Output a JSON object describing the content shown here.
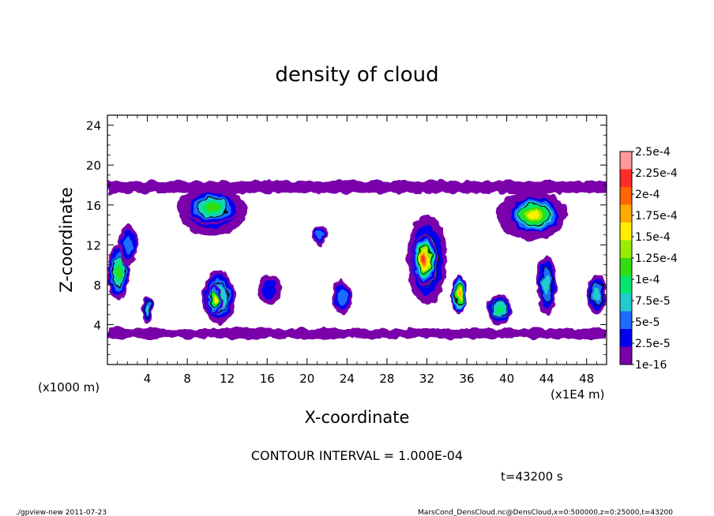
{
  "chart_data": {
    "type": "heatmap",
    "title": "density of cloud",
    "xlabel": "X-coordinate",
    "ylabel": "Z-coordinate",
    "x_unit_label": "(x1E4 m)",
    "y_unit_label": "(x1000 m)",
    "xlim": [
      0,
      50
    ],
    "ylim": [
      0,
      25
    ],
    "x_ticks": [
      4,
      8,
      12,
      16,
      20,
      24,
      28,
      32,
      36,
      40,
      44,
      48
    ],
    "y_ticks": [
      4,
      8,
      12,
      16,
      20,
      24
    ],
    "contour_interval_text": "CONTOUR INTERVAL = 1.000E-04",
    "time_text": "t=43200 s",
    "colorbar": {
      "levels": [
        "2.5e-4",
        "2.25e-4",
        "2e-4",
        "1.75e-4",
        "1.5e-4",
        "1.25e-4",
        "1e-4",
        "7.5e-5",
        "5e-5",
        "2.5e-5",
        "1e-16"
      ],
      "colors": [
        "#ff9a9a",
        "#ff2a2a",
        "#ff6600",
        "#ffaa00",
        "#ffee00",
        "#99ee00",
        "#33dd11",
        "#00e870",
        "#22cccc",
        "#1e6cff",
        "#0000ee",
        "#7a00aa"
      ]
    },
    "cloud_regions": [
      {
        "x": [
          0,
          50
        ],
        "z": [
          2.6,
          3.6
        ],
        "level": 0
      },
      {
        "x": [
          0,
          50
        ],
        "z": [
          17.2,
          18.4
        ],
        "level": 0
      },
      {
        "x": [
          0,
          2.2
        ],
        "z": [
          6.5,
          12.0
        ],
        "level": 5
      },
      {
        "x": [
          1.2,
          3.0
        ],
        "z": [
          10.0,
          14.0
        ],
        "level": 2
      },
      {
        "x": [
          3.4,
          4.6
        ],
        "z": [
          4.2,
          6.8
        ],
        "level": 3
      },
      {
        "x": [
          7.0,
          14.0
        ],
        "z": [
          13.0,
          17.8
        ],
        "level": 2
      },
      {
        "x": [
          7.8,
          13.2
        ],
        "z": [
          14.0,
          17.5
        ],
        "level": 5
      },
      {
        "x": [
          9.5,
          12.8
        ],
        "z": [
          4.0,
          9.5
        ],
        "level": 4
      },
      {
        "x": [
          10.0,
          11.5
        ],
        "z": [
          5.0,
          8.0
        ],
        "level": 7
      },
      {
        "x": [
          15.0,
          17.5
        ],
        "z": [
          6.0,
          9.0
        ],
        "level": 1
      },
      {
        "x": [
          20.5,
          22.0
        ],
        "z": [
          12.0,
          14.0
        ],
        "level": 2
      },
      {
        "x": [
          22.5,
          24.5
        ],
        "z": [
          5.0,
          8.5
        ],
        "level": 2
      },
      {
        "x": [
          30.0,
          34.0
        ],
        "z": [
          6.0,
          15.0
        ],
        "level": 3
      },
      {
        "x": [
          30.5,
          33.0
        ],
        "z": [
          8.0,
          13.0
        ],
        "level": 10
      },
      {
        "x": [
          34.5,
          36.0
        ],
        "z": [
          5.0,
          9.0
        ],
        "level": 8
      },
      {
        "x": [
          38.0,
          40.5
        ],
        "z": [
          4.0,
          7.0
        ],
        "level": 4
      },
      {
        "x": [
          39.0,
          46.0
        ],
        "z": [
          12.5,
          17.5
        ],
        "level": 2
      },
      {
        "x": [
          40.0,
          45.5
        ],
        "z": [
          13.0,
          17.0
        ],
        "level": 7
      },
      {
        "x": [
          43.0,
          45.0
        ],
        "z": [
          5.0,
          11.0
        ],
        "level": 3
      },
      {
        "x": [
          48.0,
          50.0
        ],
        "z": [
          5.0,
          9.0
        ],
        "level": 3
      }
    ]
  },
  "footer": {
    "left": "./gpview-new   2011-07-23",
    "right": "MarsCond_DensCloud.nc@DensCloud,x=0:500000,z=0:25000,t=43200"
  }
}
